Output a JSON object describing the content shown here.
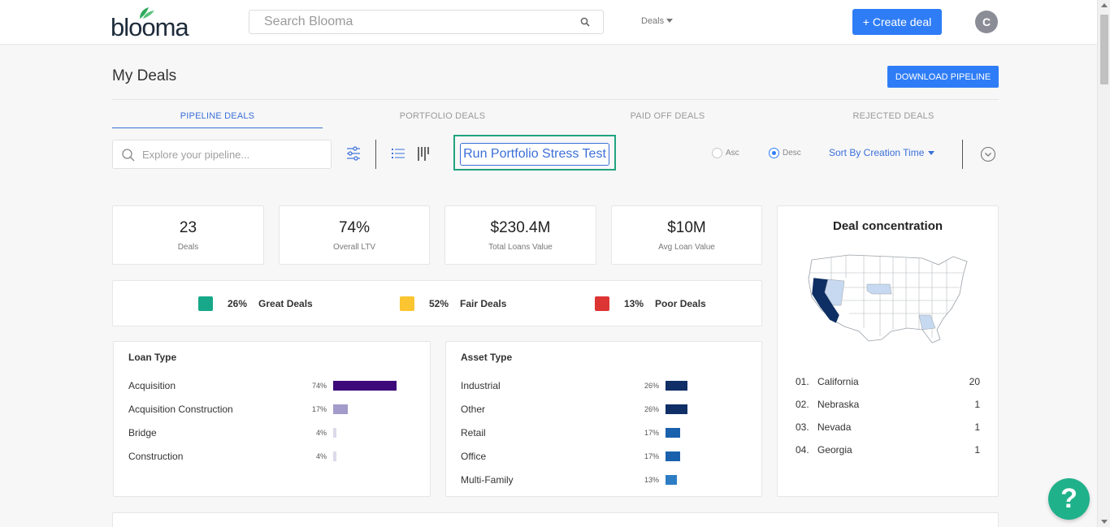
{
  "header": {
    "logo_text": "blooma",
    "search_placeholder": "Search Blooma",
    "deals_menu": "Deals",
    "create_deal": "+ Create deal",
    "avatar_initial": "C"
  },
  "page": {
    "title": "My Deals",
    "download_button": "DOWNLOAD PIPELINE",
    "tabs": [
      {
        "label": "PIPELINE DEALS",
        "active": true
      },
      {
        "label": "PORTFOLIO DEALS",
        "active": false
      },
      {
        "label": "PAID OFF DEALS",
        "active": false
      },
      {
        "label": "REJECTED DEALS",
        "active": false
      }
    ]
  },
  "toolbar": {
    "search_placeholder": "Explore your pipeline...",
    "stress_test": "Run Portfolio Stress Test",
    "asc": "Asc",
    "desc": "Desc",
    "sort_by": "Sort By Creation Time"
  },
  "stats": [
    {
      "value": "23",
      "label": "Deals"
    },
    {
      "value": "74%",
      "label": "Overall LTV"
    },
    {
      "value": "$230.4M",
      "label": "Total Loans Value"
    },
    {
      "value": "$10M",
      "label": "Avg Loan Value"
    }
  ],
  "quality": [
    {
      "pct": "26%",
      "label": "Great Deals",
      "color": "#16a889"
    },
    {
      "pct": "52%",
      "label": "Fair Deals",
      "color": "#fbc531"
    },
    {
      "pct": "13%",
      "label": "Poor Deals",
      "color": "#dd3434"
    }
  ],
  "loan_type": {
    "title": "Loan Type",
    "items": [
      {
        "name": "Acquisition",
        "pct": "74%",
        "value": 74,
        "color": "#3d0a7a"
      },
      {
        "name": "Acquisition Construction",
        "pct": "17%",
        "value": 17,
        "color": "#a39bc9"
      },
      {
        "name": "Bridge",
        "pct": "4%",
        "value": 4,
        "color": "#dcdaea"
      },
      {
        "name": "Construction",
        "pct": "4%",
        "value": 4,
        "color": "#dcdaea"
      }
    ]
  },
  "asset_type": {
    "title": "Asset Type",
    "items": [
      {
        "name": "Industrial",
        "pct": "26%",
        "value": 26,
        "color": "#0f2f66"
      },
      {
        "name": "Other",
        "pct": "26%",
        "value": 26,
        "color": "#0f2f66"
      },
      {
        "name": "Retail",
        "pct": "17%",
        "value": 17,
        "color": "#1a61ad"
      },
      {
        "name": "Office",
        "pct": "17%",
        "value": 17,
        "color": "#1a61ad"
      },
      {
        "name": "Multi-Family",
        "pct": "13%",
        "value": 13,
        "color": "#2d7dc5"
      }
    ]
  },
  "deal_concentration": {
    "title": "Deal concentration",
    "states": [
      {
        "num": "01.",
        "name": "California",
        "count": "20"
      },
      {
        "num": "02.",
        "name": "Nebraska",
        "count": "1"
      },
      {
        "num": "03.",
        "name": "Nevada",
        "count": "1"
      },
      {
        "num": "04.",
        "name": "Georgia",
        "count": "1"
      }
    ]
  },
  "help": "?"
}
